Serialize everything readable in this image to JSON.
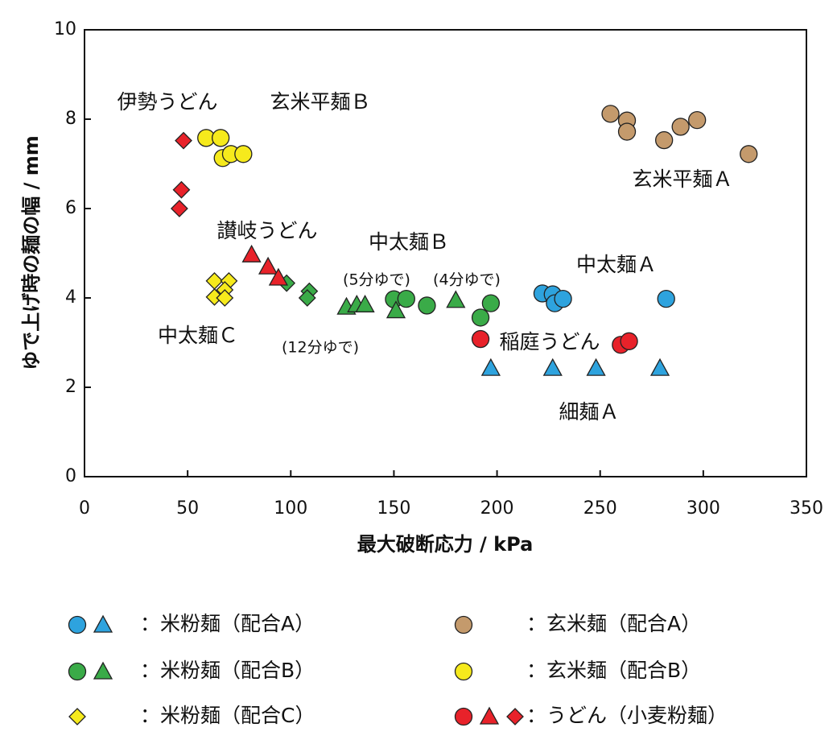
{
  "chart_data": {
    "type": "scatter",
    "x_label": "最大破断応力 / kPa",
    "y_label": "ゆで上げ時の麺の幅 / mm",
    "xlim": [
      0,
      350
    ],
    "xticks": [
      0,
      50,
      100,
      150,
      200,
      250,
      300,
      350
    ],
    "ylim": [
      0,
      10
    ],
    "yticks": [
      0,
      2,
      4,
      6,
      8,
      10
    ],
    "grid": false,
    "series": [
      {
        "name": "：米粉麺（配合A）",
        "color": "#2ea3de",
        "legend_markers": [
          "circle",
          "triangle"
        ],
        "circle": {
          "x": [
            222,
            227,
            228,
            232,
            282
          ],
          "y": [
            4.1,
            4.08,
            3.88,
            3.98,
            3.98
          ]
        },
        "triangle": {
          "x": [
            197,
            227,
            248,
            279
          ],
          "y": [
            2.43,
            2.43,
            2.43,
            2.43
          ]
        }
      },
      {
        "name": "：米粉麺（配合B）",
        "color": "#3aab48",
        "legend_markers": [
          "circle",
          "triangle"
        ],
        "circle": {
          "x": [
            150,
            156,
            166,
            192,
            197
          ],
          "y": [
            3.97,
            3.98,
            3.83,
            3.56,
            3.88
          ]
        },
        "triangle": {
          "x": [
            127,
            132,
            136,
            151,
            180
          ],
          "y": [
            3.8,
            3.85,
            3.85,
            3.72,
            3.95
          ]
        },
        "diamond": {
          "x": [
            98,
            109,
            108
          ],
          "y": [
            4.33,
            4.15,
            4.0
          ]
        }
      },
      {
        "name": "：米粉麺（配合C）",
        "color": "#f6ea1c",
        "legend_markers": [
          "diamond"
        ],
        "diamond": {
          "x": [
            63,
            63,
            70,
            68,
            68
          ],
          "y": [
            4.38,
            4.02,
            4.38,
            4.18,
            4.0
          ]
        }
      },
      {
        "name": "：玄米麺（配合A）",
        "color": "#c49a6c",
        "legend_markers": [
          "circle"
        ],
        "circle": {
          "x": [
            255,
            263,
            263,
            281,
            289,
            297,
            322
          ],
          "y": [
            8.12,
            7.97,
            7.72,
            7.53,
            7.83,
            7.98,
            7.22
          ]
        }
      },
      {
        "name": "：玄米麺（配合B）",
        "color": "#f6ea1c",
        "legend_markers": [
          "circle"
        ],
        "circle": {
          "x": [
            59,
            66,
            67,
            71,
            77
          ],
          "y": [
            7.58,
            7.58,
            7.13,
            7.22,
            7.22
          ]
        }
      },
      {
        "name": "：うどん（小麦粉麺）",
        "color": "#e8222a",
        "legend_markers": [
          "circle",
          "triangle",
          "diamond"
        ],
        "circle": {
          "x": [
            192,
            260,
            264
          ],
          "y": [
            3.08,
            2.95,
            3.03
          ]
        },
        "triangle": {
          "x": [
            81,
            89,
            94
          ],
          "y": [
            4.97,
            4.7,
            4.45
          ]
        },
        "diamond": {
          "x": [
            48,
            47,
            46
          ],
          "y": [
            7.52,
            6.42,
            6.0
          ]
        }
      }
    ],
    "annotations": [
      "伊勢うどん",
      "玄米平麺Ｂ",
      "玄米平麺Ａ",
      "讃岐うどん",
      "中太麺Ｂ",
      "(5分ゆで)",
      "(4分ゆで)",
      "中太麺Ａ",
      "中太麺Ｃ",
      "(12分ゆで)",
      "稲庭うどん",
      "細麺Ａ"
    ]
  }
}
